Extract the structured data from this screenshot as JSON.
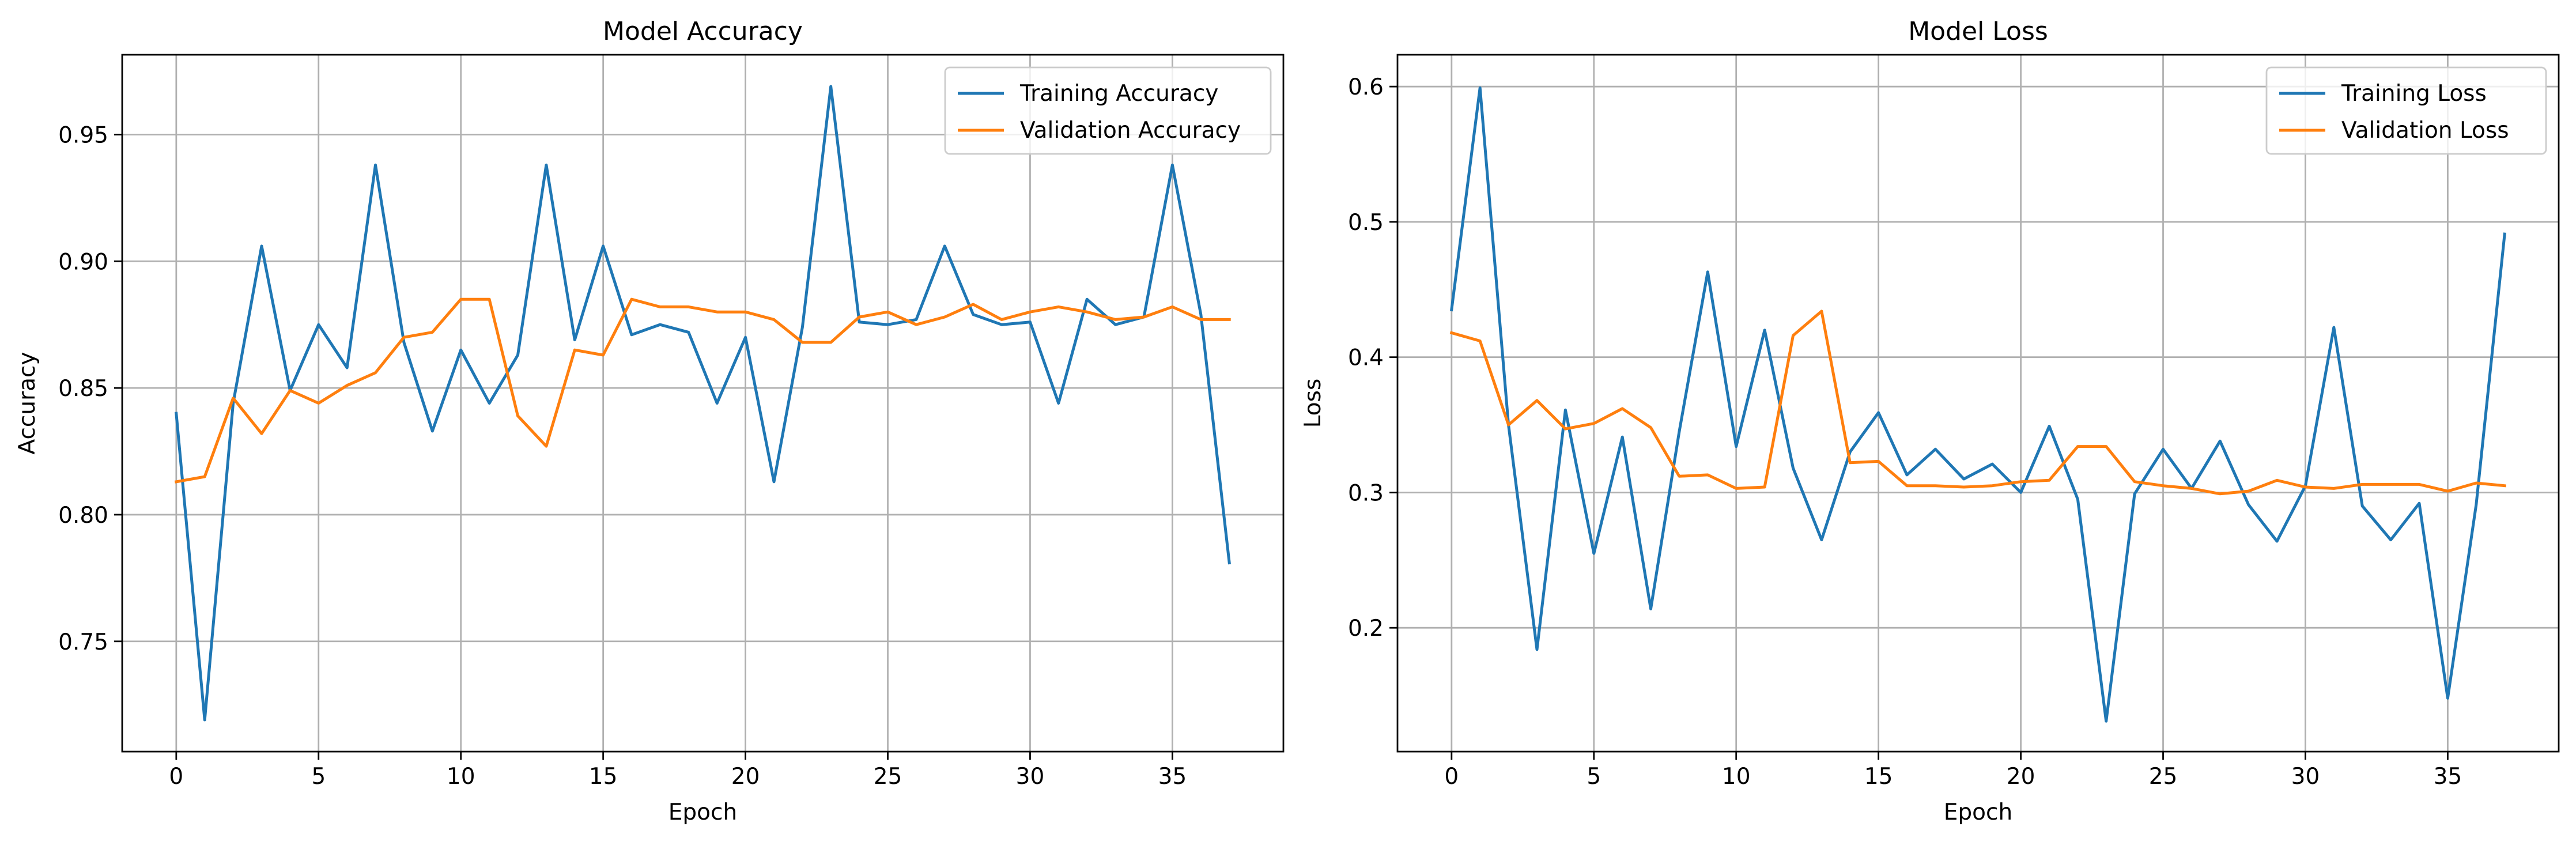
{
  "chart_data": [
    {
      "type": "line",
      "title": "Model Accuracy",
      "xlabel": "Epoch",
      "ylabel": "Accuracy",
      "xlim": [
        -1.9,
        38.9
      ],
      "ylim": [
        0.7065,
        0.9815
      ],
      "xticks": [
        0,
        5,
        10,
        15,
        20,
        25,
        30,
        35
      ],
      "xtick_labels": [
        "0",
        "5",
        "10",
        "15",
        "20",
        "25",
        "30",
        "35"
      ],
      "yticks": [
        0.75,
        0.8,
        0.85,
        0.9,
        0.95
      ],
      "ytick_labels": [
        "0.75",
        "0.80",
        "0.85",
        "0.90",
        "0.95"
      ],
      "grid": true,
      "legend_position": "top-right",
      "x": [
        0,
        1,
        2,
        3,
        4,
        5,
        6,
        7,
        8,
        9,
        10,
        11,
        12,
        13,
        14,
        15,
        16,
        17,
        18,
        19,
        20,
        21,
        22,
        23,
        24,
        25,
        26,
        27,
        28,
        29,
        30,
        31,
        32,
        33,
        34,
        35,
        36,
        37
      ],
      "series": [
        {
          "name": "Training Accuracy",
          "color": "#1f77b4",
          "values": [
            0.84,
            0.719,
            0.844,
            0.906,
            0.849,
            0.875,
            0.858,
            0.938,
            0.868,
            0.833,
            0.865,
            0.844,
            0.863,
            0.938,
            0.869,
            0.906,
            0.871,
            0.875,
            0.872,
            0.844,
            0.87,
            0.813,
            0.874,
            0.969,
            0.876,
            0.875,
            0.877,
            0.906,
            0.879,
            0.875,
            0.876,
            0.844,
            0.885,
            0.875,
            0.878,
            0.938,
            0.879,
            0.781
          ]
        },
        {
          "name": "Validation Accuracy",
          "color": "#ff7f0e",
          "values": [
            0.813,
            0.815,
            0.846,
            0.832,
            0.849,
            0.844,
            0.851,
            0.856,
            0.87,
            0.872,
            0.885,
            0.885,
            0.839,
            0.827,
            0.865,
            0.863,
            0.885,
            0.882,
            0.882,
            0.88,
            0.88,
            0.877,
            0.868,
            0.868,
            0.878,
            0.88,
            0.875,
            0.878,
            0.883,
            0.877,
            0.88,
            0.882,
            0.88,
            0.877,
            0.878,
            0.882,
            0.877,
            0.877
          ]
        }
      ]
    },
    {
      "type": "line",
      "title": "Model Loss",
      "xlabel": "Epoch",
      "ylabel": "Loss",
      "xlim": [
        -1.9,
        38.9
      ],
      "ylim": [
        0.1085,
        0.6235
      ],
      "xticks": [
        0,
        5,
        10,
        15,
        20,
        25,
        30,
        35
      ],
      "xtick_labels": [
        "0",
        "5",
        "10",
        "15",
        "20",
        "25",
        "30",
        "35"
      ],
      "yticks": [
        0.2,
        0.3,
        0.4,
        0.5,
        0.6
      ],
      "ytick_labels": [
        "0.2",
        "0.3",
        "0.4",
        "0.5",
        "0.6"
      ],
      "grid": true,
      "legend_position": "top-right",
      "x": [
        0,
        1,
        2,
        3,
        4,
        5,
        6,
        7,
        8,
        9,
        10,
        11,
        12,
        13,
        14,
        15,
        16,
        17,
        18,
        19,
        20,
        21,
        22,
        23,
        24,
        25,
        26,
        27,
        28,
        29,
        30,
        31,
        32,
        33,
        34,
        35,
        36,
        37
      ],
      "series": [
        {
          "name": "Training Loss",
          "color": "#1f77b4",
          "values": [
            0.435,
            0.599,
            0.35,
            0.184,
            0.361,
            0.255,
            0.341,
            0.214,
            0.345,
            0.463,
            0.334,
            0.42,
            0.318,
            0.265,
            0.33,
            0.359,
            0.313,
            0.332,
            0.31,
            0.321,
            0.3,
            0.349,
            0.295,
            0.131,
            0.299,
            0.332,
            0.303,
            0.338,
            0.291,
            0.264,
            0.305,
            0.422,
            0.29,
            0.265,
            0.292,
            0.148,
            0.291,
            0.491
          ]
        },
        {
          "name": "Validation Loss",
          "color": "#ff7f0e",
          "values": [
            0.418,
            0.412,
            0.35,
            0.368,
            0.347,
            0.351,
            0.362,
            0.348,
            0.312,
            0.313,
            0.303,
            0.304,
            0.416,
            0.434,
            0.322,
            0.323,
            0.305,
            0.305,
            0.304,
            0.305,
            0.308,
            0.309,
            0.334,
            0.334,
            0.308,
            0.305,
            0.303,
            0.299,
            0.301,
            0.309,
            0.304,
            0.303,
            0.306,
            0.306,
            0.306,
            0.301,
            0.307,
            0.305
          ]
        }
      ]
    }
  ]
}
